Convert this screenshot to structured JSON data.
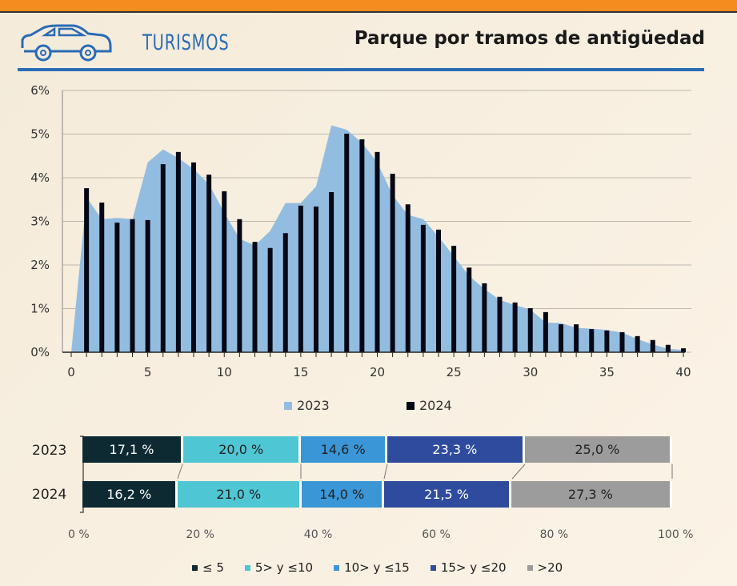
{
  "header": {
    "section": "TURISMOS",
    "title": "Parque por tramos de antigüedad"
  },
  "colors": {
    "2023": "#93bde0",
    "2024": "#050814",
    "le5": "#0d2a33",
    "5to10": "#4fc6d3",
    "10to15": "#3a96d6",
    "15to20": "#2f4b9e",
    "gt20": "#9c9c9c",
    "accent": "#f48c20",
    "brand": "#2a6bb5"
  },
  "chart_data": [
    {
      "type": "bar+area",
      "xlim": [
        0,
        40
      ],
      "ylim": [
        0,
        6
      ],
      "grid": true,
      "legend_position": "bottom",
      "xticks": [
        "0",
        "5",
        "10",
        "15",
        "20",
        "25",
        "30",
        "35",
        "40"
      ],
      "yticks": [
        "0%",
        "1%",
        "2%",
        "3%",
        "4%",
        "5%",
        "6%"
      ],
      "x": [
        0,
        1,
        2,
        3,
        4,
        5,
        6,
        7,
        8,
        9,
        10,
        11,
        12,
        13,
        14,
        15,
        16,
        17,
        18,
        19,
        20,
        21,
        22,
        23,
        24,
        25,
        26,
        27,
        28,
        29,
        30,
        31,
        32,
        33,
        34,
        35,
        36,
        37,
        38,
        39,
        40
      ],
      "series": [
        {
          "name": "2023",
          "type": "area",
          "values": [
            0,
            3.55,
            3.05,
            3.08,
            3.05,
            4.35,
            4.65,
            4.45,
            4.2,
            3.85,
            3.2,
            2.6,
            2.45,
            2.78,
            3.42,
            3.42,
            3.8,
            5.2,
            5.1,
            4.8,
            4.35,
            3.6,
            3.15,
            3.05,
            2.65,
            2.2,
            1.75,
            1.45,
            1.2,
            1.08,
            0.98,
            0.68,
            0.67,
            0.56,
            0.54,
            0.51,
            0.45,
            0.3,
            0.18,
            0.08,
            0.05
          ]
        },
        {
          "name": "2024",
          "type": "bar",
          "values": [
            0,
            3.76,
            3.43,
            2.97,
            3.05,
            3.03,
            4.31,
            4.59,
            4.35,
            4.07,
            3.69,
            3.05,
            2.53,
            2.39,
            2.73,
            3.36,
            3.34,
            3.67,
            5.01,
            4.88,
            4.59,
            4.09,
            3.39,
            2.92,
            2.81,
            2.44,
            1.94,
            1.58,
            1.27,
            1.14,
            1.01,
            0.92,
            0.64,
            0.64,
            0.53,
            0.5,
            0.46,
            0.37,
            0.28,
            0.17,
            0.09
          ]
        }
      ]
    },
    {
      "type": "stacked-bar-horizontal",
      "categories": [
        "2023",
        "2024"
      ],
      "xticks": [
        "0 %",
        "20 %",
        "40 %",
        "60 %",
        "80 %",
        "100 %"
      ],
      "legend_position": "bottom",
      "series": [
        {
          "name": "≤ 5",
          "values": [
            17.1,
            16.2
          ],
          "labels": [
            "17,1 %",
            "16,2 %"
          ]
        },
        {
          "name": "5> y ≤10",
          "values": [
            20.0,
            21.0
          ],
          "labels": [
            "20,0 %",
            "21,0 %"
          ]
        },
        {
          "name": "10> y ≤15",
          "values": [
            14.6,
            14.0
          ],
          "labels": [
            "14,6 %",
            "14,0 %"
          ]
        },
        {
          "name": "15> y ≤20",
          "values": [
            23.3,
            21.5
          ],
          "labels": [
            "23,3 %",
            "21,5 %"
          ]
        },
        {
          "name": ">20",
          "values": [
            25.0,
            27.3
          ],
          "labels": [
            "25,0 %",
            "27,3 %"
          ]
        }
      ]
    }
  ]
}
